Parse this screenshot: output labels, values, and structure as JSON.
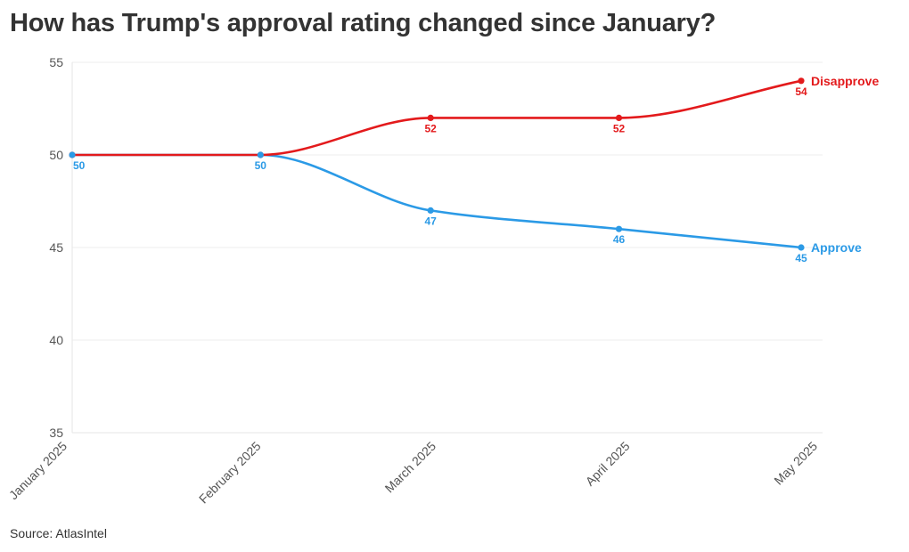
{
  "source": "Source: AtlasIntel",
  "chart_data": {
    "type": "line",
    "title": "How has Trump's approval rating changed since January?",
    "x": [
      "2025-01-01",
      "2025-02-01",
      "2025-03-01",
      "2025-04-01",
      "2025-05-01"
    ],
    "x_tick_labels": [
      "January 2025",
      "February 2025",
      "March 2025",
      "April 2025",
      "May 2025"
    ],
    "ylim": [
      35,
      55
    ],
    "yticks": [
      35,
      40,
      45,
      50,
      55
    ],
    "grid": true,
    "series": [
      {
        "name": "Disapprove",
        "color": "#e31a1c",
        "points": [
          [
            "2025-01-01",
            50
          ],
          [
            "2025-02-01",
            50
          ],
          [
            "2025-03-01",
            52
          ],
          [
            "2025-04-01",
            52
          ],
          [
            "2025-05-01",
            54
          ]
        ]
      },
      {
        "name": "Approve",
        "color": "#2b9ae6",
        "points": [
          [
            "2025-01-01",
            50
          ],
          [
            "2025-02-01",
            50
          ],
          [
            "2025-03-01",
            47
          ],
          [
            "2025-04-01",
            46
          ],
          [
            "2025-05-01",
            45
          ]
        ]
      }
    ]
  }
}
